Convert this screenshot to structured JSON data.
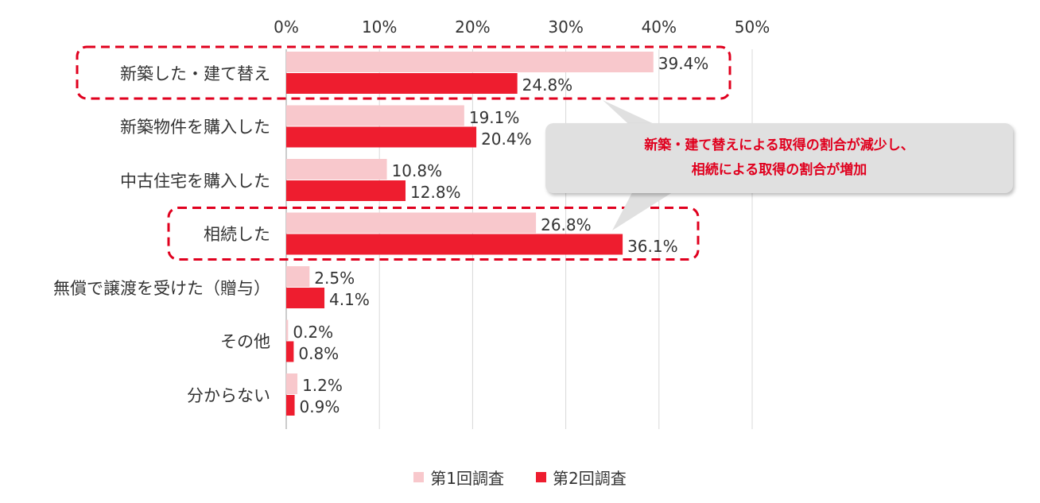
{
  "chart_data": {
    "type": "bar",
    "orientation": "horizontal",
    "categories": [
      "新築した・建て替え",
      "新築物件を購入した",
      "中古住宅を購入した",
      "相続した",
      "無償で譲渡を受けた（贈与）",
      "その他",
      "分からない"
    ],
    "series": [
      {
        "name": "第1回調査",
        "color": "#f8c8cc",
        "values": [
          39.4,
          19.1,
          10.8,
          26.8,
          2.5,
          0.2,
          1.2
        ]
      },
      {
        "name": "第2回調査",
        "color": "#ee1d2f",
        "values": [
          24.8,
          20.4,
          12.8,
          36.1,
          4.1,
          0.8,
          0.9
        ]
      }
    ],
    "xlim": [
      0,
      50
    ],
    "xticks": [
      "0%",
      "10%",
      "20%",
      "30%",
      "40%",
      "50%"
    ],
    "value_suffix": "%",
    "grid": true,
    "legend_position": "bottom",
    "highlighted_categories": [
      "新築した・建て替え",
      "相続した"
    ],
    "highlight_color": "#e0001e"
  },
  "callout": {
    "line1": "新築・建て替えによる取得の割合が減少し、",
    "line2": "相続による取得の割合が増加"
  }
}
